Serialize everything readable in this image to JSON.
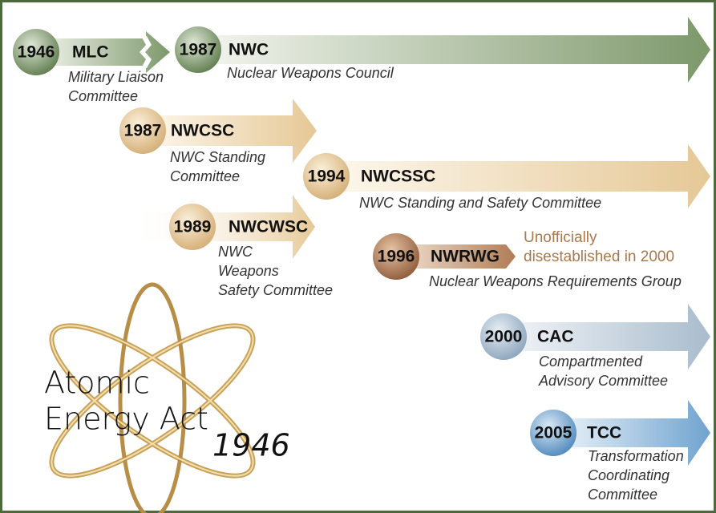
{
  "nodes": [
    {
      "year": "1946",
      "acronym": "MLC",
      "name": [
        "Military Liaison",
        "Committee"
      ]
    },
    {
      "year": "1987",
      "acronym": "NWC",
      "name": [
        "Nuclear Weapons Council"
      ]
    },
    {
      "year": "1987",
      "acronym": "NWCSC",
      "name": [
        "NWC Standing",
        "Committee"
      ]
    },
    {
      "year": "1994",
      "acronym": "NWCSSC",
      "name": [
        "NWC Standing and Safety Committee"
      ]
    },
    {
      "year": "1989",
      "acronym": "NWCWSC",
      "name": [
        "NWC",
        "Weapons",
        "Safety Committee"
      ]
    },
    {
      "year": "1996",
      "acronym": "NWRWG",
      "name": [
        "Nuclear Weapons Requirements Group"
      ],
      "note": [
        "Unofficially",
        "disestablished in 2000"
      ]
    },
    {
      "year": "2000",
      "acronym": "CAC",
      "name": [
        "Compartmented",
        "Advisory Committee"
      ]
    },
    {
      "year": "2005",
      "acronym": "TCC",
      "name": [
        "Transformation",
        "Coordinating",
        "Committee"
      ]
    }
  ],
  "logo": {
    "lines": [
      "Atomic",
      "Energy Act",
      "1946"
    ]
  }
}
